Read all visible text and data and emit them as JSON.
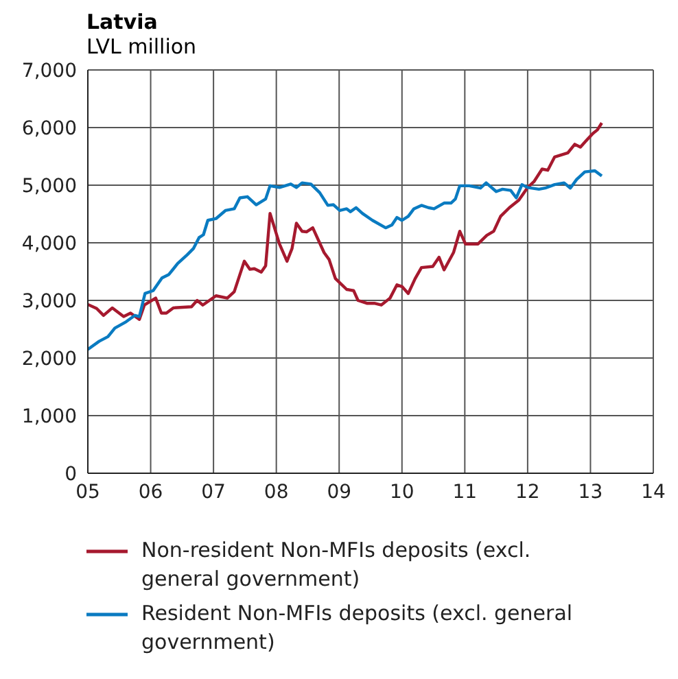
{
  "chart_data": {
    "type": "line",
    "title": "Latvia",
    "subtitle": "LVL million",
    "xlim": [
      5,
      14
    ],
    "xticks": [
      {
        "value": 5,
        "label": "05"
      },
      {
        "value": 6,
        "label": "06"
      },
      {
        "value": 7,
        "label": "07"
      },
      {
        "value": 8,
        "label": "08"
      },
      {
        "value": 9,
        "label": "09"
      },
      {
        "value": 10,
        "label": "10"
      },
      {
        "value": 11,
        "label": "11"
      },
      {
        "value": 12,
        "label": "12"
      },
      {
        "value": 13,
        "label": "13"
      },
      {
        "value": 14,
        "label": "14"
      }
    ],
    "ylim": [
      0,
      7000
    ],
    "yticks": [
      0,
      {
        "value": 1000,
        "label": "1,000"
      },
      {
        "value": 2000,
        "label": "2,000"
      },
      {
        "value": 3000,
        "label": "3,000"
      },
      {
        "value": 4000,
        "label": "4,000"
      },
      {
        "value": 5000,
        "label": "5,000"
      },
      {
        "value": 6000,
        "label": "6,000"
      },
      {
        "value": 7000,
        "label": "7,000"
      }
    ],
    "grid": true,
    "legend": "bottom",
    "line_style": "solid",
    "marker": "none",
    "series": [
      {
        "name": "Non-resident Non-MFIs deposits (excl. general government)",
        "color": "#a6192e",
        "x": [
          5.0,
          5.14,
          5.25,
          5.39,
          5.57,
          5.68,
          5.82,
          5.9,
          6.08,
          6.17,
          6.25,
          6.36,
          6.65,
          6.74,
          6.83,
          7.04,
          7.22,
          7.33,
          7.49,
          7.58,
          7.65,
          7.76,
          7.83,
          7.9,
          8.05,
          8.17,
          8.25,
          8.32,
          8.41,
          8.48,
          8.58,
          8.76,
          8.84,
          8.94,
          9.12,
          9.23,
          9.3,
          9.44,
          9.56,
          9.67,
          9.81,
          9.92,
          10.0,
          10.1,
          10.21,
          10.31,
          10.49,
          10.59,
          10.67,
          10.82,
          10.92,
          11.01,
          11.21,
          11.35,
          11.46,
          11.57,
          11.71,
          11.86,
          12.0,
          12.1,
          12.23,
          12.32,
          12.43,
          12.64,
          12.75,
          12.84,
          12.93,
          13.04,
          13.11,
          13.18
        ],
        "values": [
          2930,
          2860,
          2740,
          2870,
          2720,
          2780,
          2670,
          2920,
          3040,
          2780,
          2780,
          2870,
          2890,
          3000,
          2920,
          3080,
          3040,
          3150,
          3680,
          3540,
          3550,
          3490,
          3600,
          4510,
          3980,
          3680,
          3900,
          4340,
          4200,
          4190,
          4260,
          3830,
          3710,
          3380,
          3190,
          3170,
          3000,
          2950,
          2950,
          2920,
          3040,
          3270,
          3240,
          3120,
          3380,
          3570,
          3590,
          3750,
          3530,
          3830,
          4200,
          3980,
          3980,
          4130,
          4200,
          4460,
          4610,
          4740,
          4960,
          5060,
          5280,
          5260,
          5490,
          5560,
          5710,
          5660,
          5770,
          5900,
          5960,
          6080
        ]
      },
      {
        "name": "Resident Non-MFIs deposits (excl. general government)",
        "color": "#0a7bc1",
        "x": [
          5.0,
          5.18,
          5.32,
          5.43,
          5.61,
          5.75,
          5.82,
          5.91,
          6.04,
          6.18,
          6.29,
          6.43,
          6.58,
          6.68,
          6.77,
          6.84,
          6.91,
          7.04,
          7.19,
          7.33,
          7.42,
          7.54,
          7.68,
          7.83,
          7.9,
          8.05,
          8.23,
          8.32,
          8.41,
          8.55,
          8.69,
          8.82,
          8.91,
          9.01,
          9.12,
          9.18,
          9.27,
          9.37,
          9.53,
          9.74,
          9.84,
          9.92,
          10.0,
          10.1,
          10.19,
          10.31,
          10.42,
          10.51,
          10.67,
          10.78,
          10.85,
          10.92,
          11.07,
          11.25,
          11.34,
          11.5,
          11.6,
          11.73,
          11.82,
          11.91,
          12.0,
          12.18,
          12.28,
          12.43,
          12.58,
          12.68,
          12.78,
          12.91,
          13.07,
          13.18
        ],
        "values": [
          2150,
          2290,
          2370,
          2520,
          2630,
          2740,
          2720,
          3120,
          3170,
          3390,
          3450,
          3640,
          3790,
          3900,
          4090,
          4140,
          4390,
          4420,
          4560,
          4590,
          4780,
          4800,
          4660,
          4760,
          4990,
          4960,
          5020,
          4960,
          5040,
          5020,
          4870,
          4650,
          4660,
          4560,
          4590,
          4540,
          4610,
          4510,
          4390,
          4260,
          4310,
          4440,
          4390,
          4460,
          4590,
          4650,
          4610,
          4590,
          4690,
          4690,
          4760,
          4990,
          4990,
          4950,
          5040,
          4890,
          4930,
          4910,
          4780,
          5010,
          4960,
          4930,
          4950,
          5010,
          5040,
          4950,
          5100,
          5230,
          5250,
          5160
        ]
      }
    ]
  }
}
